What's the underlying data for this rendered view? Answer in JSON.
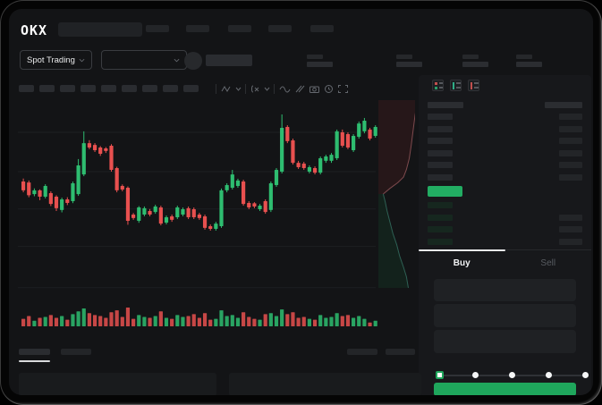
{
  "window": {
    "brand": "OKX"
  },
  "market_selector": {
    "label": "Spot Trading"
  },
  "placeholders": {
    "nav_items": 5,
    "chart_toolbar_bars": 9,
    "header_stats": 4,
    "bottom_tabs": 2,
    "bottom_right_bars": 2
  },
  "toolbar_icons": [
    "zigzag-icon",
    "chevron-down-icon",
    "function-icon",
    "chevron-down-icon",
    "wave-icon",
    "parallel-lines-icon",
    "camera-icon",
    "clock-icon",
    "expand-icon"
  ],
  "order_book": {
    "view_icons": [
      "book-both-sides-icon",
      "book-bids-only-icon",
      "book-asks-only-icon"
    ],
    "ask_rows": 6,
    "bid_rows": 4,
    "bid_rows_with_amount": [
      1,
      2,
      3
    ],
    "mid_price_highlight_color": "#22ad63"
  },
  "trade_panel": {
    "tabs": {
      "buy": "Buy",
      "sell": "Sell"
    },
    "active_tab": "Buy",
    "input_fields": 3,
    "slider": {
      "steps": 5,
      "active_index": 0
    },
    "submit_button_color": "#1fa65c"
  },
  "colors": {
    "up": "#2ebd70",
    "down": "#e8504f",
    "grid": "#1d1f22",
    "depth_ask_fill": "#261719",
    "depth_ask_line": "#7e4a4e",
    "depth_bid_fill": "#13221c",
    "depth_bid_line": "#2e6054"
  },
  "chart_data": {
    "type": "candlestick",
    "title": "",
    "note": "no axis labels visible; prices normalized 0-100",
    "ylim": [
      0,
      100
    ],
    "gridline_prices": [
      85,
      65,
      46,
      27,
      6
    ],
    "candles": [
      [
        60,
        61.5,
        54.5,
        55.5
      ],
      [
        59.5,
        60.5,
        52,
        53
      ],
      [
        53.6,
        56.5,
        52.5,
        55.5
      ],
      [
        55.5,
        56,
        50.5,
        52.3
      ],
      [
        52.3,
        58.6,
        51.4,
        57.7
      ],
      [
        54.1,
        55,
        47.5,
        48.6
      ],
      [
        52.3,
        53,
        45,
        46.4
      ],
      [
        45.5,
        51.8,
        44.3,
        50.9
      ],
      [
        50.9,
        52,
        48,
        49.1
      ],
      [
        50,
        60,
        49,
        59.1
      ],
      [
        53.6,
        71.4,
        52.7,
        68.2
      ],
      [
        63.6,
        85.5,
        62.7,
        79.5
      ],
      [
        79.5,
        81,
        76.4,
        77.3
      ],
      [
        78.6,
        79.5,
        75,
        75.9
      ],
      [
        77.3,
        78,
        73,
        74.1
      ],
      [
        76.8,
        77.5,
        74.5,
        75.5
      ],
      [
        78.2,
        79,
        65,
        65.9
      ],
      [
        66.8,
        67.5,
        54.5,
        55.5
      ],
      [
        57.7,
        58.5,
        55,
        55.9
      ],
      [
        56.8,
        57.5,
        38,
        40
      ],
      [
        43.2,
        44,
        40.5,
        41.4
      ],
      [
        40,
        47.5,
        39,
        46.8
      ],
      [
        43.2,
        47.3,
        42.3,
        46.4
      ],
      [
        45,
        46,
        42.3,
        43.2
      ],
      [
        44.5,
        48.2,
        43.6,
        47.3
      ],
      [
        46.8,
        47.7,
        37.7,
        38.6
      ],
      [
        39.1,
        42.7,
        38.2,
        41.8
      ],
      [
        42.3,
        43.2,
        39.5,
        40.5
      ],
      [
        41.8,
        47.7,
        40.9,
        46.8
      ],
      [
        43.2,
        46.8,
        42.3,
        45.9
      ],
      [
        46.4,
        47.3,
        40.9,
        41.8
      ],
      [
        45.9,
        46.8,
        40.9,
        41.8
      ],
      [
        43.2,
        44.1,
        40.5,
        41.4
      ],
      [
        42.3,
        43.2,
        35.5,
        36.4
      ],
      [
        37.3,
        38.2,
        35,
        35.9
      ],
      [
        35.9,
        39.5,
        35,
        38.6
      ],
      [
        37.3,
        56.4,
        36.4,
        55.5
      ],
      [
        55.5,
        59.1,
        54.5,
        58.2
      ],
      [
        56.8,
        65.9,
        55.9,
        63.6
      ],
      [
        57.7,
        61.4,
        56.8,
        60.5
      ],
      [
        60,
        60.9,
        47.7,
        48.6
      ],
      [
        49.1,
        50,
        45.9,
        46.8
      ],
      [
        48.9,
        49.5,
        46.4,
        47.3
      ],
      [
        45.9,
        48.6,
        45,
        47.7
      ],
      [
        50,
        50.9,
        43.6,
        44.5
      ],
      [
        45.5,
        60,
        44.5,
        59.1
      ],
      [
        58.2,
        66.8,
        57.3,
        65.9
      ],
      [
        65,
        94.1,
        64.1,
        87.3
      ],
      [
        87.7,
        88.6,
        79.5,
        80.5
      ],
      [
        80.9,
        81.8,
        68.6,
        69.5
      ],
      [
        69.5,
        70.5,
        66.4,
        67.3
      ],
      [
        69.1,
        70,
        65.9,
        66.8
      ],
      [
        65,
        68.2,
        64.1,
        67.3
      ],
      [
        66.8,
        67.7,
        63.6,
        64.5
      ],
      [
        64.5,
        72.7,
        63.6,
        71.8
      ],
      [
        70.5,
        73.6,
        69.5,
        72.7
      ],
      [
        70.5,
        74.5,
        69.5,
        73.6
      ],
      [
        71.8,
        86.4,
        70.9,
        85.5
      ],
      [
        85,
        86.4,
        77.3,
        78.2
      ],
      [
        84.1,
        85,
        76.4,
        77.3
      ],
      [
        75.9,
        84.1,
        75,
        83.2
      ],
      [
        82.7,
        90.5,
        81.8,
        89.5
      ],
      [
        85.5,
        92.3,
        84.5,
        90.9
      ],
      [
        86.4,
        87.3,
        80.9,
        81.8
      ],
      [
        83.2,
        88.6,
        82.3,
        87.7
      ]
    ],
    "volumes": [
      40,
      55,
      30,
      45,
      50,
      60,
      45,
      55,
      35,
      65,
      80,
      95,
      70,
      60,
      55,
      45,
      75,
      85,
      50,
      100,
      40,
      60,
      50,
      45,
      55,
      80,
      45,
      40,
      60,
      50,
      55,
      65,
      45,
      70,
      35,
      40,
      85,
      55,
      60,
      45,
      75,
      50,
      40,
      35,
      65,
      70,
      55,
      90,
      65,
      75,
      45,
      50,
      40,
      35,
      60,
      45,
      50,
      70,
      55,
      60,
      45,
      55,
      40,
      20,
      30
    ],
    "depth": {
      "ask_curve": [
        [
          81,
          0
        ],
        [
          76,
          8
        ],
        [
          72,
          16
        ],
        [
          68,
          24
        ],
        [
          64,
          31
        ],
        [
          58,
          37
        ],
        [
          52,
          41
        ],
        [
          40,
          44
        ],
        [
          24,
          47
        ],
        [
          10,
          50
        ]
      ],
      "bid_curve": [
        [
          10,
          50
        ],
        [
          14,
          54
        ],
        [
          18,
          59
        ],
        [
          24,
          65
        ],
        [
          30,
          71
        ],
        [
          38,
          77
        ],
        [
          44,
          83
        ],
        [
          52,
          89
        ],
        [
          58,
          94
        ],
        [
          62,
          100
        ]
      ]
    }
  }
}
